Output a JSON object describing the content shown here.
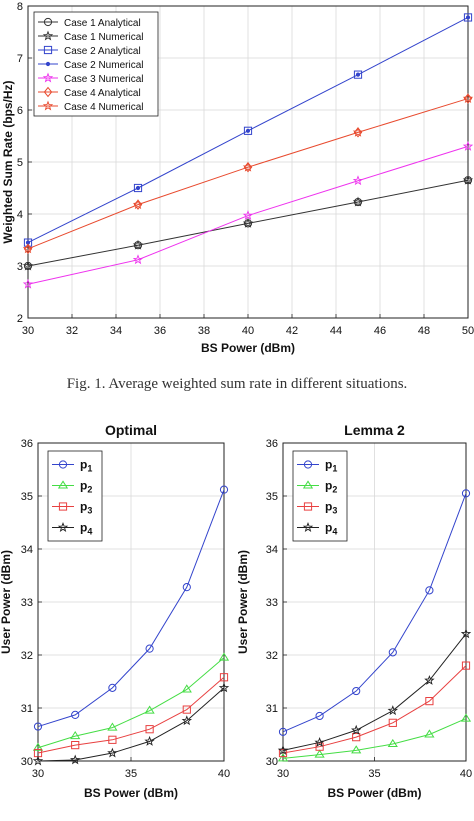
{
  "caption": "Fig. 1.    Average weighted sum rate in different situations.",
  "chart_data": [
    {
      "type": "line",
      "title": "",
      "xlabel": "BS Power (dBm)",
      "ylabel": "Weighted Sum Rate (bps/Hz)",
      "xlim": [
        30,
        50
      ],
      "ylim": [
        2,
        8
      ],
      "xticks": [
        30,
        32,
        34,
        36,
        38,
        40,
        42,
        44,
        46,
        48,
        50
      ],
      "yticks": [
        2,
        3,
        4,
        5,
        6,
        7,
        8
      ],
      "grid": true,
      "legend_position": "top-left",
      "x": [
        30,
        35,
        40,
        45,
        50
      ],
      "series": [
        {
          "name": "Case 1 Analytical",
          "values": [
            3.0,
            3.4,
            3.82,
            4.23,
            4.65
          ],
          "color": "#333333",
          "marker": "circle",
          "line": true
        },
        {
          "name": "Case 1 Numerical",
          "values": [
            3.0,
            3.4,
            3.82,
            4.23,
            4.65
          ],
          "color": "#333333",
          "marker": "star",
          "line": false
        },
        {
          "name": "Case 2 Analytical",
          "values": [
            3.45,
            4.5,
            5.6,
            6.68,
            7.78
          ],
          "color": "#3344cc",
          "marker": "square",
          "line": true
        },
        {
          "name": "Case 2 Numerical",
          "values": [
            3.45,
            4.5,
            5.6,
            6.68,
            7.78
          ],
          "color": "#3344cc",
          "marker": "dot",
          "line": false
        },
        {
          "name": "Case 3 Numerical",
          "values": [
            2.65,
            3.12,
            3.97,
            4.64,
            5.3
          ],
          "color": "#ee33ee",
          "marker": "star",
          "line": true
        },
        {
          "name": "Case 4 Analytical",
          "values": [
            3.33,
            4.18,
            4.9,
            5.57,
            6.22
          ],
          "color": "#e84a2e",
          "marker": "diamond",
          "line": true
        },
        {
          "name": "Case 4 Numerical",
          "values": [
            3.33,
            4.18,
            4.9,
            5.57,
            6.22
          ],
          "color": "#e84a2e",
          "marker": "star",
          "line": false
        }
      ]
    },
    {
      "type": "line",
      "title": "Optimal",
      "xlabel": "BS Power (dBm)",
      "ylabel": "User Power (dBm)",
      "xlim": [
        30,
        40
      ],
      "ylim": [
        30,
        36
      ],
      "xticks": [
        30,
        35,
        40
      ],
      "yticks": [
        30,
        31,
        32,
        33,
        34,
        35,
        36
      ],
      "grid": true,
      "legend_position": "top-left",
      "x": [
        30,
        32,
        34,
        36,
        38,
        40
      ],
      "series": [
        {
          "name": "p",
          "subscript": "1",
          "values": [
            30.65,
            30.87,
            31.38,
            32.12,
            33.28,
            35.12
          ],
          "color": "#3344cc",
          "marker": "circle",
          "line": true
        },
        {
          "name": "p",
          "subscript": "2",
          "values": [
            30.25,
            30.47,
            30.63,
            30.95,
            31.35,
            31.95
          ],
          "color": "#44dd44",
          "marker": "triangle",
          "line": true
        },
        {
          "name": "p",
          "subscript": "3",
          "values": [
            30.15,
            30.3,
            30.4,
            30.6,
            30.97,
            31.58
          ],
          "color": "#e84040",
          "marker": "square",
          "line": true
        },
        {
          "name": "p",
          "subscript": "4",
          "values": [
            30.0,
            30.02,
            30.15,
            30.37,
            30.76,
            31.38
          ],
          "color": "#222222",
          "marker": "star",
          "line": true
        }
      ]
    },
    {
      "type": "line",
      "title": "Lemma 2",
      "xlabel": "BS Power (dBm)",
      "ylabel": "User Power (dBm)",
      "xlim": [
        30,
        40
      ],
      "ylim": [
        30,
        36
      ],
      "xticks": [
        30,
        35,
        40
      ],
      "yticks": [
        30,
        31,
        32,
        33,
        34,
        35,
        36
      ],
      "grid": true,
      "legend_position": "top-left",
      "x": [
        30,
        32,
        34,
        36,
        38,
        40
      ],
      "series": [
        {
          "name": "p",
          "subscript": "1",
          "values": [
            30.55,
            30.85,
            31.32,
            32.05,
            33.22,
            35.05
          ],
          "color": "#3344cc",
          "marker": "circle",
          "line": true
        },
        {
          "name": "p",
          "subscript": "2",
          "values": [
            30.05,
            30.12,
            30.2,
            30.32,
            30.5,
            30.8
          ],
          "color": "#44dd44",
          "marker": "triangle",
          "line": true
        },
        {
          "name": "p",
          "subscript": "3",
          "values": [
            30.15,
            30.27,
            30.45,
            30.72,
            31.13,
            31.8
          ],
          "color": "#e84040",
          "marker": "square",
          "line": true
        },
        {
          "name": "p",
          "subscript": "4",
          "values": [
            30.2,
            30.35,
            30.58,
            30.95,
            31.52,
            32.4
          ],
          "color": "#222222",
          "marker": "star",
          "line": true
        }
      ]
    }
  ]
}
